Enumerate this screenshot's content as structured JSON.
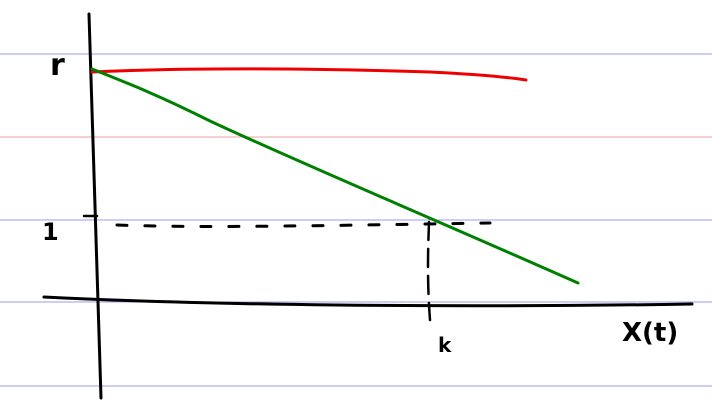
{
  "labels": {
    "y_top": "r",
    "y_mid": "1",
    "x_mark": "k",
    "x_axis": "X(t)"
  },
  "colors": {
    "background": "#ffffff",
    "ruled_blue": "#9b9bf0",
    "ruled_red": "#e8a0a0",
    "red_curve": "#ee0000",
    "green_curve": "#008000",
    "ink": "#000000"
  }
}
